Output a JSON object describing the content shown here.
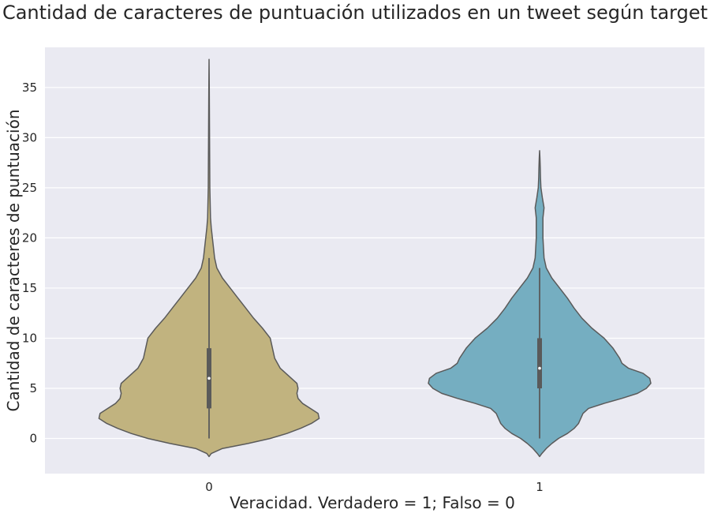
{
  "chart_data": {
    "type": "violin",
    "title": "Cantidad de caracteres de puntuación utilizados en un tweet según target",
    "xlabel": "Veracidad. Verdadero = 1; Falso = 0",
    "ylabel": "Cantidad de caracteres de puntuación",
    "categories": [
      "0",
      "1"
    ],
    "ylim": [
      -3.5,
      39
    ],
    "yticks": [
      0,
      5,
      10,
      15,
      20,
      25,
      30,
      35
    ],
    "grid": true,
    "legend": "none",
    "colors": {
      "background": "#eaeaf2",
      "grid": "#ffffff",
      "outline": "#5a5a5a",
      "inner_box": "#5a5a5a"
    },
    "series": [
      {
        "category": "0",
        "color": "#c1b37f",
        "min": 0,
        "q1": 3,
        "median": 6,
        "q3": 9,
        "whisker_high": 18,
        "max": 38,
        "density": [
          [
            -1.8,
            0.0
          ],
          [
            -1.5,
            0.02
          ],
          [
            -1.0,
            0.12
          ],
          [
            -0.5,
            0.35
          ],
          [
            0.0,
            0.55
          ],
          [
            0.5,
            0.7
          ],
          [
            1.0,
            0.82
          ],
          [
            1.5,
            0.92
          ],
          [
            2.0,
            0.99
          ],
          [
            2.5,
            0.98
          ],
          [
            3.0,
            0.91
          ],
          [
            3.5,
            0.84
          ],
          [
            4.0,
            0.8
          ],
          [
            4.5,
            0.79
          ],
          [
            5.0,
            0.8
          ],
          [
            5.5,
            0.79
          ],
          [
            6.0,
            0.74
          ],
          [
            7.0,
            0.64
          ],
          [
            8.0,
            0.59
          ],
          [
            9.0,
            0.57
          ],
          [
            9.5,
            0.56
          ],
          [
            10.0,
            0.55
          ],
          [
            11.0,
            0.48
          ],
          [
            12.0,
            0.4
          ],
          [
            13.0,
            0.33
          ],
          [
            14.0,
            0.26
          ],
          [
            15.0,
            0.19
          ],
          [
            16.0,
            0.12
          ],
          [
            17.0,
            0.07
          ],
          [
            18.0,
            0.05
          ],
          [
            19.0,
            0.04
          ],
          [
            20.0,
            0.03
          ],
          [
            21.0,
            0.02
          ],
          [
            22.0,
            0.013
          ],
          [
            23.0,
            0.011
          ],
          [
            24.0,
            0.009
          ],
          [
            25.0,
            0.007
          ],
          [
            27.0,
            0.006
          ],
          [
            29.0,
            0.005
          ],
          [
            31.0,
            0.004
          ],
          [
            33.0,
            0.003
          ],
          [
            35.0,
            0.002
          ],
          [
            36.5,
            0.001
          ],
          [
            37.8,
            0.0
          ]
        ]
      },
      {
        "category": "1",
        "color": "#75aec1",
        "min": 0,
        "q1": 5,
        "median": 7,
        "q3": 10,
        "whisker_high": 17,
        "max": 28.5,
        "density": [
          [
            -1.8,
            0.0
          ],
          [
            -1.5,
            0.02
          ],
          [
            -1.0,
            0.06
          ],
          [
            -0.5,
            0.11
          ],
          [
            0.0,
            0.17
          ],
          [
            0.5,
            0.25
          ],
          [
            1.0,
            0.31
          ],
          [
            1.5,
            0.35
          ],
          [
            2.0,
            0.37
          ],
          [
            2.5,
            0.39
          ],
          [
            3.0,
            0.44
          ],
          [
            3.5,
            0.58
          ],
          [
            4.0,
            0.74
          ],
          [
            4.5,
            0.88
          ],
          [
            5.0,
            0.96
          ],
          [
            5.5,
            1.0
          ],
          [
            6.0,
            0.99
          ],
          [
            6.5,
            0.93
          ],
          [
            7.0,
            0.8
          ],
          [
            7.5,
            0.74
          ],
          [
            8.0,
            0.72
          ],
          [
            9.0,
            0.66
          ],
          [
            10.0,
            0.58
          ],
          [
            11.0,
            0.47
          ],
          [
            12.0,
            0.38
          ],
          [
            13.0,
            0.31
          ],
          [
            14.0,
            0.25
          ],
          [
            15.0,
            0.18
          ],
          [
            16.0,
            0.11
          ],
          [
            17.0,
            0.06
          ],
          [
            18.0,
            0.04
          ],
          [
            19.0,
            0.035
          ],
          [
            20.0,
            0.03
          ],
          [
            21.0,
            0.03
          ],
          [
            22.0,
            0.03
          ],
          [
            23.0,
            0.04
          ],
          [
            24.0,
            0.025
          ],
          [
            25.0,
            0.012
          ],
          [
            26.0,
            0.008
          ],
          [
            27.0,
            0.006
          ],
          [
            28.0,
            0.003
          ],
          [
            28.7,
            0.0
          ]
        ]
      }
    ]
  }
}
